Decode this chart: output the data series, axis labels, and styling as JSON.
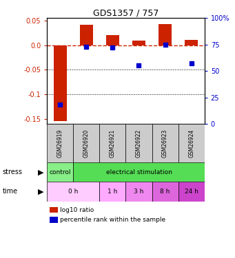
{
  "title": "GDS1357 / 757",
  "samples": [
    "GSM26919",
    "GSM26920",
    "GSM26921",
    "GSM26922",
    "GSM26923",
    "GSM26924"
  ],
  "log10_ratio": [
    -0.155,
    0.042,
    0.021,
    0.009,
    0.043,
    0.01
  ],
  "percentile_rank": [
    18,
    73,
    72,
    55,
    75,
    57
  ],
  "ylim_left": [
    -0.16,
    0.055
  ],
  "ylim_right": [
    0,
    100
  ],
  "left_ticks": [
    0.05,
    0.0,
    -0.05,
    -0.1,
    -0.15
  ],
  "right_ticks": [
    100,
    75,
    50,
    25,
    0
  ],
  "bar_color": "#cc2200",
  "dot_color": "#0000cc",
  "dashed_line_color": "#cc2200",
  "stress_labels": [
    {
      "text": "control",
      "span": [
        0,
        1
      ],
      "color": "#88ee88"
    },
    {
      "text": "electrical stimulation",
      "span": [
        1,
        6
      ],
      "color": "#55dd55"
    }
  ],
  "time_labels": [
    {
      "text": "0 h",
      "span": [
        0,
        2
      ],
      "color": "#ffccff"
    },
    {
      "text": "1 h",
      "span": [
        2,
        3
      ],
      "color": "#ffaaff"
    },
    {
      "text": "3 h",
      "span": [
        3,
        4
      ],
      "color": "#ee88ee"
    },
    {
      "text": "8 h",
      "span": [
        4,
        5
      ],
      "color": "#dd66dd"
    },
    {
      "text": "24 h",
      "span": [
        5,
        6
      ],
      "color": "#cc44cc"
    }
  ],
  "legend_red": "log10 ratio",
  "legend_blue": "percentile rank within the sample",
  "bar_width": 0.5,
  "sample_bg": "#cccccc",
  "fig_width": 3.41,
  "fig_height": 3.75,
  "dpi": 100
}
